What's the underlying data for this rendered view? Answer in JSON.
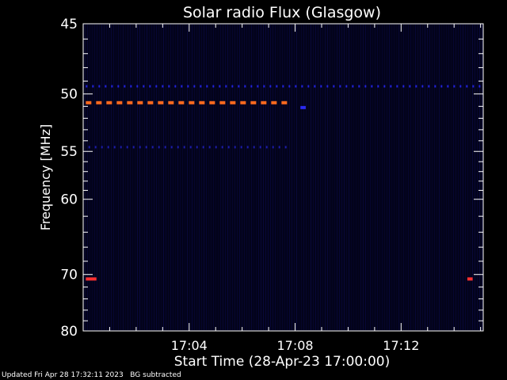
{
  "chart_data": {
    "type": "heatmap",
    "title": "Solar radio Flux (Glasgow)",
    "xlabel": "Start Time (28-Apr-23 17:00:00)",
    "ylabel": "Frequency [MHz]",
    "x_unit": "minutes after 17:00",
    "xlim": [
      0,
      15.1
    ],
    "y_scale": "reciprocal",
    "ylim": [
      45,
      80
    ],
    "x_ticks": [
      {
        "value": 4,
        "label": "17:04"
      },
      {
        "value": 8,
        "label": "17:08"
      },
      {
        "value": 12,
        "label": "17:12"
      }
    ],
    "y_ticks": [
      {
        "value": 45,
        "label": "45"
      },
      {
        "value": 50,
        "label": "50"
      },
      {
        "value": 55,
        "label": "55"
      },
      {
        "value": 60,
        "label": "60"
      },
      {
        "value": 70,
        "label": "70"
      },
      {
        "value": 80,
        "label": "80"
      }
    ],
    "y_minor_ticks": [
      46,
      47,
      48,
      49,
      51,
      52,
      53,
      54,
      56,
      57,
      58,
      59,
      62,
      64,
      66,
      68,
      72,
      74,
      76,
      78
    ],
    "background_color": "#03031a",
    "features": [
      {
        "name": "",
        "freq": 49.4,
        "x_start": 0.1,
        "x_end": 15.1,
        "color": "#2222dd",
        "style": "dashed"
      },
      {
        "name": "",
        "freq": 50.7,
        "x_start": 0.1,
        "x_end": 7.7,
        "color": "#ff6a1e",
        "style": "dashed"
      },
      {
        "name": "",
        "freq": 54.6,
        "x_start": 0.2,
        "x_end": 7.7,
        "color": "#1c1ca8",
        "style": "dashed"
      },
      {
        "name": "",
        "freq": 51.1,
        "x_start": 8.2,
        "x_end": 8.4,
        "color": "#2a2aee",
        "style": "solid"
      },
      {
        "name": "",
        "freq": 70.7,
        "x_start": 0.1,
        "x_end": 0.5,
        "color": "#ff3030",
        "style": "solid"
      },
      {
        "name": "",
        "freq": 70.7,
        "x_start": 14.5,
        "x_end": 14.7,
        "color": "#ff3030",
        "style": "solid"
      }
    ]
  },
  "footer": {
    "updated": "Updated Fri Apr 28 17:32:11 2023",
    "note": "BG subtracted"
  }
}
